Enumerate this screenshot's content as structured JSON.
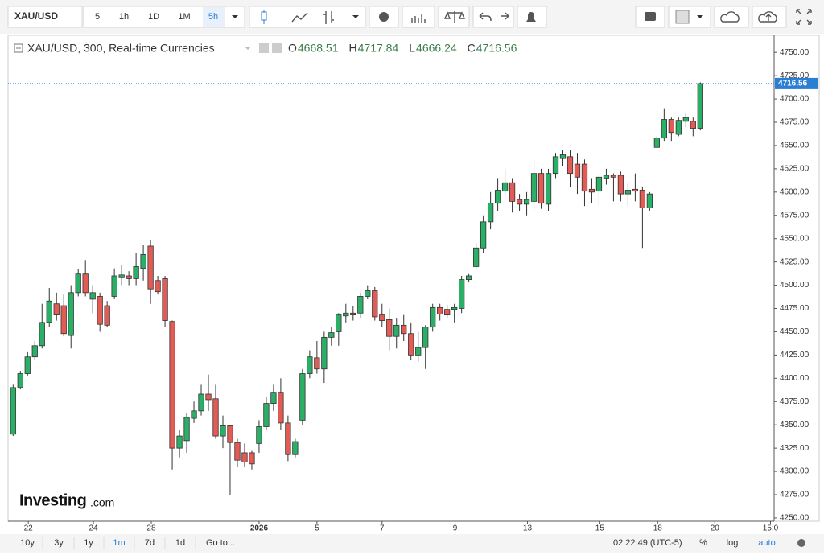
{
  "toolbar": {
    "symbol": "XAU/USD",
    "intervals": [
      "5",
      "1h",
      "1D",
      "1M",
      "5h"
    ]
  },
  "bottom_bar": {
    "ranges": [
      "10y",
      "3y",
      "1y",
      "1m",
      "7d",
      "1d"
    ],
    "goto": "Go to...",
    "clock": "02:22:49 (UTC-5)",
    "percent": "%",
    "log": "log",
    "auto": "auto"
  },
  "logo": {
    "brand": "Investing",
    "suffix": ".com"
  },
  "chart_data": {
    "type": "candlestick",
    "title": "XAU/USD, 300, Real-time Currencies",
    "legend_labels": {
      "open": "O",
      "high": "H",
      "low": "L",
      "close": "C"
    },
    "up_color": "#2bae66",
    "down_color": "#e35b55",
    "open": [
      4340,
      4390,
      4405,
      4423,
      4435,
      4460,
      4480,
      4478,
      4446,
      4492,
      4512,
      4485,
      4488,
      4478,
      4488,
      4508,
      4510,
      4507,
      4518,
      4542,
      4505,
      4507,
      4461,
      4325,
      4333,
      4357,
      4365,
      4383,
      4378,
      4338,
      4349,
      4331,
      4320,
      4320,
      4330,
      4348,
      4373,
      4385,
      4352,
      4318,
      4355,
      4405,
      4422,
      4410,
      4444,
      4450,
      4467,
      4470,
      4470,
      4488,
      4494,
      4468,
      4463,
      4445,
      4457,
      4448,
      4425,
      4433,
      4455,
      4476,
      4474,
      4474,
      4475,
      4506,
      4520,
      4540,
      4568,
      4588,
      4601,
      4610,
      4592,
      4587,
      4590,
      4620,
      4587,
      4620,
      4636,
      4638,
      4630,
      4630,
      4603,
      4601,
      4615,
      4618,
      4618,
      4598,
      4603,
      4602,
      4583,
      4648,
      4658,
      4678,
      4662,
      4676,
      4676,
      4668.51
    ],
    "high": [
      4393,
      4408,
      4428,
      4440,
      4480,
      4497,
      4492,
      4490,
      4500,
      4517,
      4527,
      4500,
      4492,
      4483,
      4518,
      4522,
      4515,
      4535,
      4543,
      4548,
      4510,
      4510,
      4462,
      4345,
      4363,
      4375,
      4393,
      4404,
      4393,
      4360,
      4350,
      4335,
      4330,
      4322,
      4355,
      4380,
      4393,
      4400,
      4360,
      4335,
      4410,
      4430,
      4440,
      4450,
      4455,
      4470,
      4480,
      4478,
      4492,
      4500,
      4498,
      4480,
      4475,
      4465,
      4468,
      4460,
      4450,
      4457,
      4480,
      4480,
      4479,
      4480,
      4510,
      4512,
      4545,
      4575,
      4600,
      4615,
      4625,
      4615,
      4598,
      4600,
      4635,
      4625,
      4625,
      4642,
      4645,
      4645,
      4642,
      4635,
      4615,
      4620,
      4625,
      4620,
      4622,
      4610,
      4620,
      4606,
      4600,
      4660,
      4690,
      4680,
      4680,
      4685,
      4680,
      4717.84
    ],
    "low": [
      4338,
      4388,
      4403,
      4420,
      4432,
      4455,
      4462,
      4445,
      4432,
      4488,
      4488,
      4470,
      4450,
      4455,
      4485,
      4500,
      4500,
      4500,
      4505,
      4480,
      4490,
      4455,
      4302,
      4315,
      4320,
      4352,
      4360,
      4365,
      4335,
      4325,
      4275,
      4305,
      4305,
      4302,
      4320,
      4345,
      4365,
      4345,
      4311,
      4315,
      4350,
      4400,
      4405,
      4395,
      4435,
      4435,
      4460,
      4462,
      4465,
      4485,
      4462,
      4455,
      4430,
      4432,
      4440,
      4420,
      4418,
      4410,
      4450,
      4462,
      4465,
      4460,
      4470,
      4503,
      4518,
      4535,
      4560,
      4580,
      4595,
      4578,
      4580,
      4575,
      4580,
      4582,
      4580,
      4615,
      4628,
      4605,
      4598,
      4585,
      4588,
      4585,
      4608,
      4590,
      4590,
      4585,
      4590,
      4540,
      4580,
      4648,
      4655,
      4655,
      4660,
      4670,
      4660,
      4666.24
    ],
    "close": [
      4390,
      4405,
      4423,
      4435,
      4460,
      4483,
      4468,
      4448,
      4492,
      4512,
      4492,
      4492,
      4458,
      4457,
      4510,
      4511,
      4507,
      4520,
      4533,
      4496,
      4493,
      4462,
      4325,
      4338,
      4358,
      4365,
      4383,
      4377,
      4338,
      4349,
      4331,
      4312,
      4310,
      4308,
      4348,
      4373,
      4385,
      4352,
      4318,
      4332,
      4405,
      4423,
      4410,
      4444,
      4449,
      4468,
      4470,
      4468,
      4488,
      4494,
      4466,
      4462,
      4445,
      4457,
      4448,
      4425,
      4433,
      4455,
      4476,
      4469,
      4468,
      4476,
      4506,
      4510,
      4540,
      4568,
      4588,
      4602,
      4610,
      4590,
      4587,
      4592,
      4620,
      4588,
      4620,
      4638,
      4640,
      4620,
      4616,
      4601,
      4600,
      4616,
      4618,
      4616,
      4598,
      4602,
      4601,
      4583,
      4598,
      4658,
      4678,
      4664,
      4677,
      4680,
      4668.5,
      4716.56
    ],
    "xlim": [
      -0.7,
      105.2
    ],
    "xticks": [
      {
        "value": 2.1,
        "label": "22"
      },
      {
        "value": 11.1,
        "label": "24"
      },
      {
        "value": 19.1,
        "label": "28"
      },
      {
        "value": 34.0,
        "label": "2026"
      },
      {
        "value": 42.0,
        "label": "5"
      },
      {
        "value": 51.0,
        "label": "7"
      },
      {
        "value": 61.1,
        "label": "9"
      },
      {
        "value": 71.1,
        "label": "13"
      },
      {
        "value": 81.1,
        "label": "15"
      },
      {
        "value": 89.1,
        "label": "18"
      },
      {
        "value": 97.0,
        "label": "20"
      },
      {
        "value": 104.7,
        "label": "15:0"
      }
    ],
    "ylim": [
      4246.5,
      4768.3
    ],
    "yticks": [
      {
        "value": 4250,
        "label": "4250.00"
      },
      {
        "value": 4275,
        "label": "4275.00"
      },
      {
        "value": 4300,
        "label": "4300.00"
      },
      {
        "value": 4325,
        "label": "4325.00"
      },
      {
        "value": 4350,
        "label": "4350.00"
      },
      {
        "value": 4375,
        "label": "4375.00"
      },
      {
        "value": 4400,
        "label": "4400.00"
      },
      {
        "value": 4425,
        "label": "4425.00"
      },
      {
        "value": 4450,
        "label": "4450.00"
      },
      {
        "value": 4475,
        "label": "4475.00"
      },
      {
        "value": 4500,
        "label": "4500.00"
      },
      {
        "value": 4525,
        "label": "4525.00"
      },
      {
        "value": 4550,
        "label": "4550.00"
      },
      {
        "value": 4575,
        "label": "4575.00"
      },
      {
        "value": 4600,
        "label": "4600.00"
      },
      {
        "value": 4625,
        "label": "4625.00"
      },
      {
        "value": 4650,
        "label": "4650.00"
      },
      {
        "value": 4675,
        "label": "4675.00"
      },
      {
        "value": 4700,
        "label": "4700.00"
      },
      {
        "value": 4725,
        "label": "4725.00"
      },
      {
        "value": 4750,
        "label": "4750.00"
      }
    ],
    "grid": false
  }
}
